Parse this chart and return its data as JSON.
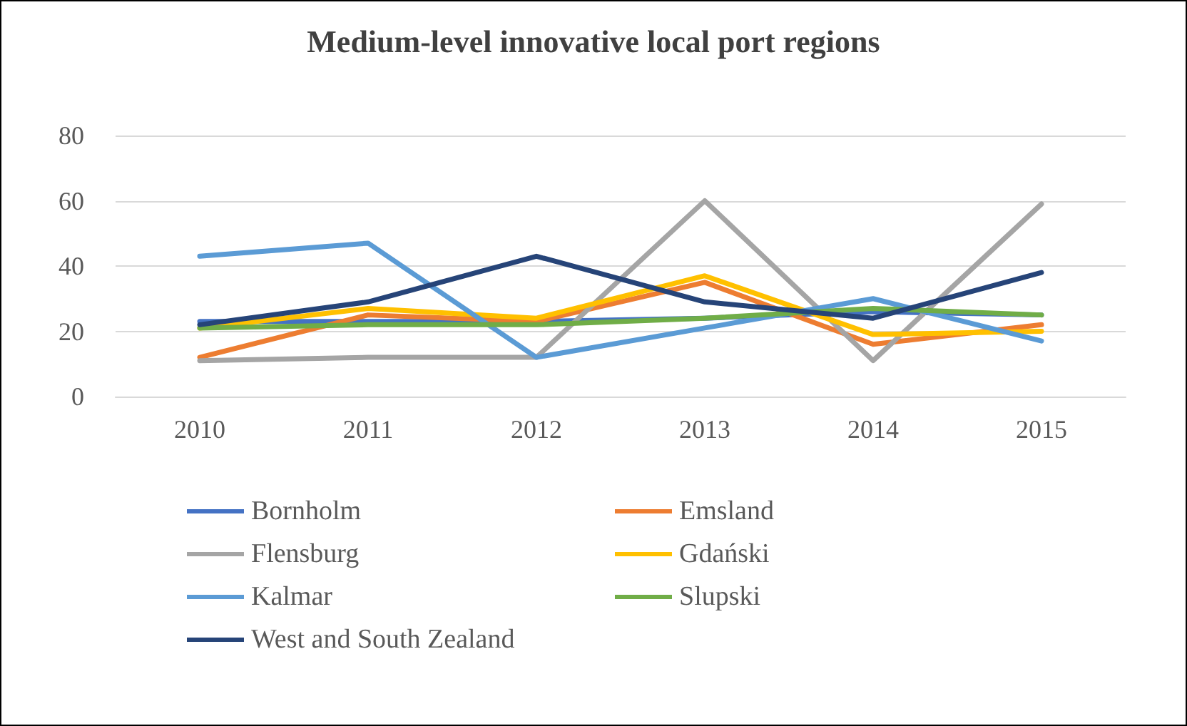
{
  "chart_data": {
    "type": "line",
    "title": "Medium-level innovative local port regions",
    "categories": [
      "2010",
      "2011",
      "2012",
      "2013",
      "2014",
      "2015"
    ],
    "series": [
      {
        "name": "Bornholm",
        "color": "#4472c4",
        "values": [
          23,
          23,
          23,
          24,
          26,
          25
        ]
      },
      {
        "name": "Emsland",
        "color": "#ed7d31",
        "values": [
          12,
          25,
          23,
          35,
          16,
          22
        ]
      },
      {
        "name": "Flensburg",
        "color": "#a5a5a5",
        "values": [
          11,
          12,
          12,
          60,
          11,
          59
        ]
      },
      {
        "name": "Gdański",
        "color": "#ffc000",
        "values": [
          21,
          27,
          24,
          37,
          19,
          20
        ]
      },
      {
        "name": "Kalmar",
        "color": "#5b9bd5",
        "values": [
          43,
          47,
          12,
          21,
          30,
          17
        ]
      },
      {
        "name": "Slupski",
        "color": "#70ad47",
        "values": [
          21,
          22,
          22,
          24,
          27,
          25
        ]
      },
      {
        "name": "West and South Zealand",
        "color": "#264478",
        "values": [
          22,
          29,
          43,
          29,
          24,
          38
        ]
      }
    ],
    "ylim": [
      0,
      80
    ],
    "yticks": [
      0,
      20,
      40,
      60,
      80
    ],
    "grid": "y",
    "legend": "bottom",
    "marker": "none",
    "line_style": "solid"
  }
}
